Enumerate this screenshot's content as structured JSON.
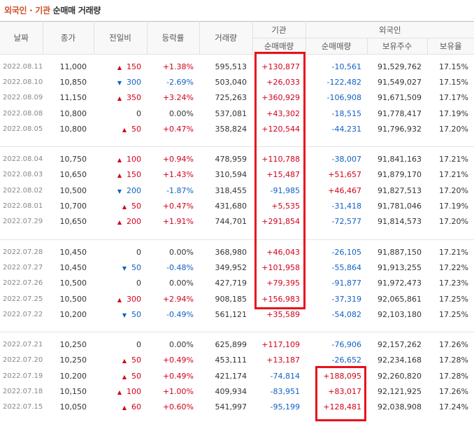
{
  "title": {
    "part1": "외국인 · 기관",
    "part2": "순매매 거래량"
  },
  "headers": {
    "date": "날짜",
    "close": "종가",
    "change": "전일비",
    "rate": "등락률",
    "volume": "거래량",
    "inst_group": "기관",
    "foreign_group": "외국인",
    "inst_net": "순매매량",
    "foreign_net": "순매매량",
    "holdings": "보유주수",
    "ratio": "보유율"
  },
  "groups": [
    [
      {
        "date": "2022.08.11",
        "close": "11,000",
        "dir": "up",
        "change": "150",
        "rate": "+1.38%",
        "volume": "595,513",
        "inst": "+130,877",
        "foreign": "-10,561",
        "holdings": "91,529,762",
        "ratio": "17.15%"
      },
      {
        "date": "2022.08.10",
        "close": "10,850",
        "dir": "down",
        "change": "300",
        "rate": "-2.69%",
        "volume": "503,040",
        "inst": "+26,033",
        "foreign": "-122,482",
        "holdings": "91,549,027",
        "ratio": "17.15%"
      },
      {
        "date": "2022.08.09",
        "close": "11,150",
        "dir": "up",
        "change": "350",
        "rate": "+3.24%",
        "volume": "725,263",
        "inst": "+360,929",
        "foreign": "-106,908",
        "holdings": "91,671,509",
        "ratio": "17.17%"
      },
      {
        "date": "2022.08.08",
        "close": "10,800",
        "dir": "flat",
        "change": "0",
        "rate": "0.00%",
        "volume": "537,081",
        "inst": "+43,302",
        "foreign": "-18,515",
        "holdings": "91,778,417",
        "ratio": "17.19%"
      },
      {
        "date": "2022.08.05",
        "close": "10,800",
        "dir": "up",
        "change": "50",
        "rate": "+0.47%",
        "volume": "358,824",
        "inst": "+120,544",
        "foreign": "-44,231",
        "holdings": "91,796,932",
        "ratio": "17.20%"
      }
    ],
    [
      {
        "date": "2022.08.04",
        "close": "10,750",
        "dir": "up",
        "change": "100",
        "rate": "+0.94%",
        "volume": "478,959",
        "inst": "+110,788",
        "foreign": "-38,007",
        "holdings": "91,841,163",
        "ratio": "17.21%"
      },
      {
        "date": "2022.08.03",
        "close": "10,650",
        "dir": "up",
        "change": "150",
        "rate": "+1.43%",
        "volume": "310,594",
        "inst": "+15,487",
        "foreign": "+51,657",
        "holdings": "91,879,170",
        "ratio": "17.21%"
      },
      {
        "date": "2022.08.02",
        "close": "10,500",
        "dir": "down",
        "change": "200",
        "rate": "-1.87%",
        "volume": "318,455",
        "inst": "-91,985",
        "foreign": "+46,467",
        "holdings": "91,827,513",
        "ratio": "17.20%"
      },
      {
        "date": "2022.08.01",
        "close": "10,700",
        "dir": "up",
        "change": "50",
        "rate": "+0.47%",
        "volume": "431,680",
        "inst": "+5,535",
        "foreign": "-31,418",
        "holdings": "91,781,046",
        "ratio": "17.19%"
      },
      {
        "date": "2022.07.29",
        "close": "10,650",
        "dir": "up",
        "change": "200",
        "rate": "+1.91%",
        "volume": "744,701",
        "inst": "+291,854",
        "foreign": "-72,577",
        "holdings": "91,814,573",
        "ratio": "17.20%"
      }
    ],
    [
      {
        "date": "2022.07.28",
        "close": "10,450",
        "dir": "flat",
        "change": "0",
        "rate": "0.00%",
        "volume": "368,980",
        "inst": "+46,043",
        "foreign": "-26,105",
        "holdings": "91,887,150",
        "ratio": "17.21%"
      },
      {
        "date": "2022.07.27",
        "close": "10,450",
        "dir": "down",
        "change": "50",
        "rate": "-0.48%",
        "volume": "349,952",
        "inst": "+101,958",
        "foreign": "-55,864",
        "holdings": "91,913,255",
        "ratio": "17.22%"
      },
      {
        "date": "2022.07.26",
        "close": "10,500",
        "dir": "flat",
        "change": "0",
        "rate": "0.00%",
        "volume": "427,719",
        "inst": "+79,395",
        "foreign": "-91,877",
        "holdings": "91,972,473",
        "ratio": "17.23%"
      },
      {
        "date": "2022.07.25",
        "close": "10,500",
        "dir": "up",
        "change": "300",
        "rate": "+2.94%",
        "volume": "908,185",
        "inst": "+156,983",
        "foreign": "-37,319",
        "holdings": "92,065,861",
        "ratio": "17.25%"
      },
      {
        "date": "2022.07.22",
        "close": "10,200",
        "dir": "down",
        "change": "50",
        "rate": "-0.49%",
        "volume": "561,121",
        "inst": "+35,589",
        "foreign": "-54,082",
        "holdings": "92,103,180",
        "ratio": "17.25%"
      }
    ],
    [
      {
        "date": "2022.07.21",
        "close": "10,250",
        "dir": "flat",
        "change": "0",
        "rate": "0.00%",
        "volume": "625,899",
        "inst": "+117,109",
        "foreign": "-76,906",
        "holdings": "92,157,262",
        "ratio": "17.26%"
      },
      {
        "date": "2022.07.20",
        "close": "10,250",
        "dir": "up",
        "change": "50",
        "rate": "+0.49%",
        "volume": "453,111",
        "inst": "+13,187",
        "foreign": "-26,652",
        "holdings": "92,234,168",
        "ratio": "17.28%"
      },
      {
        "date": "2022.07.19",
        "close": "10,200",
        "dir": "up",
        "change": "50",
        "rate": "+0.49%",
        "volume": "421,174",
        "inst": "-74,814",
        "foreign": "+188,095",
        "holdings": "92,260,820",
        "ratio": "17.28%"
      },
      {
        "date": "2022.07.18",
        "close": "10,150",
        "dir": "up",
        "change": "100",
        "rate": "+1.00%",
        "volume": "409,934",
        "inst": "-83,951",
        "foreign": "+83,017",
        "holdings": "92,121,925",
        "ratio": "17.26%"
      },
      {
        "date": "2022.07.15",
        "close": "10,050",
        "dir": "up",
        "change": "60",
        "rate": "+0.60%",
        "volume": "541,997",
        "inst": "-95,199",
        "foreign": "+128,481",
        "holdings": "92,038,908",
        "ratio": "17.24%"
      }
    ]
  ],
  "colors": {
    "up": "#d0021b",
    "down": "#1261c4",
    "highlight": "#e8121a",
    "title_accent": "#d0502a"
  }
}
